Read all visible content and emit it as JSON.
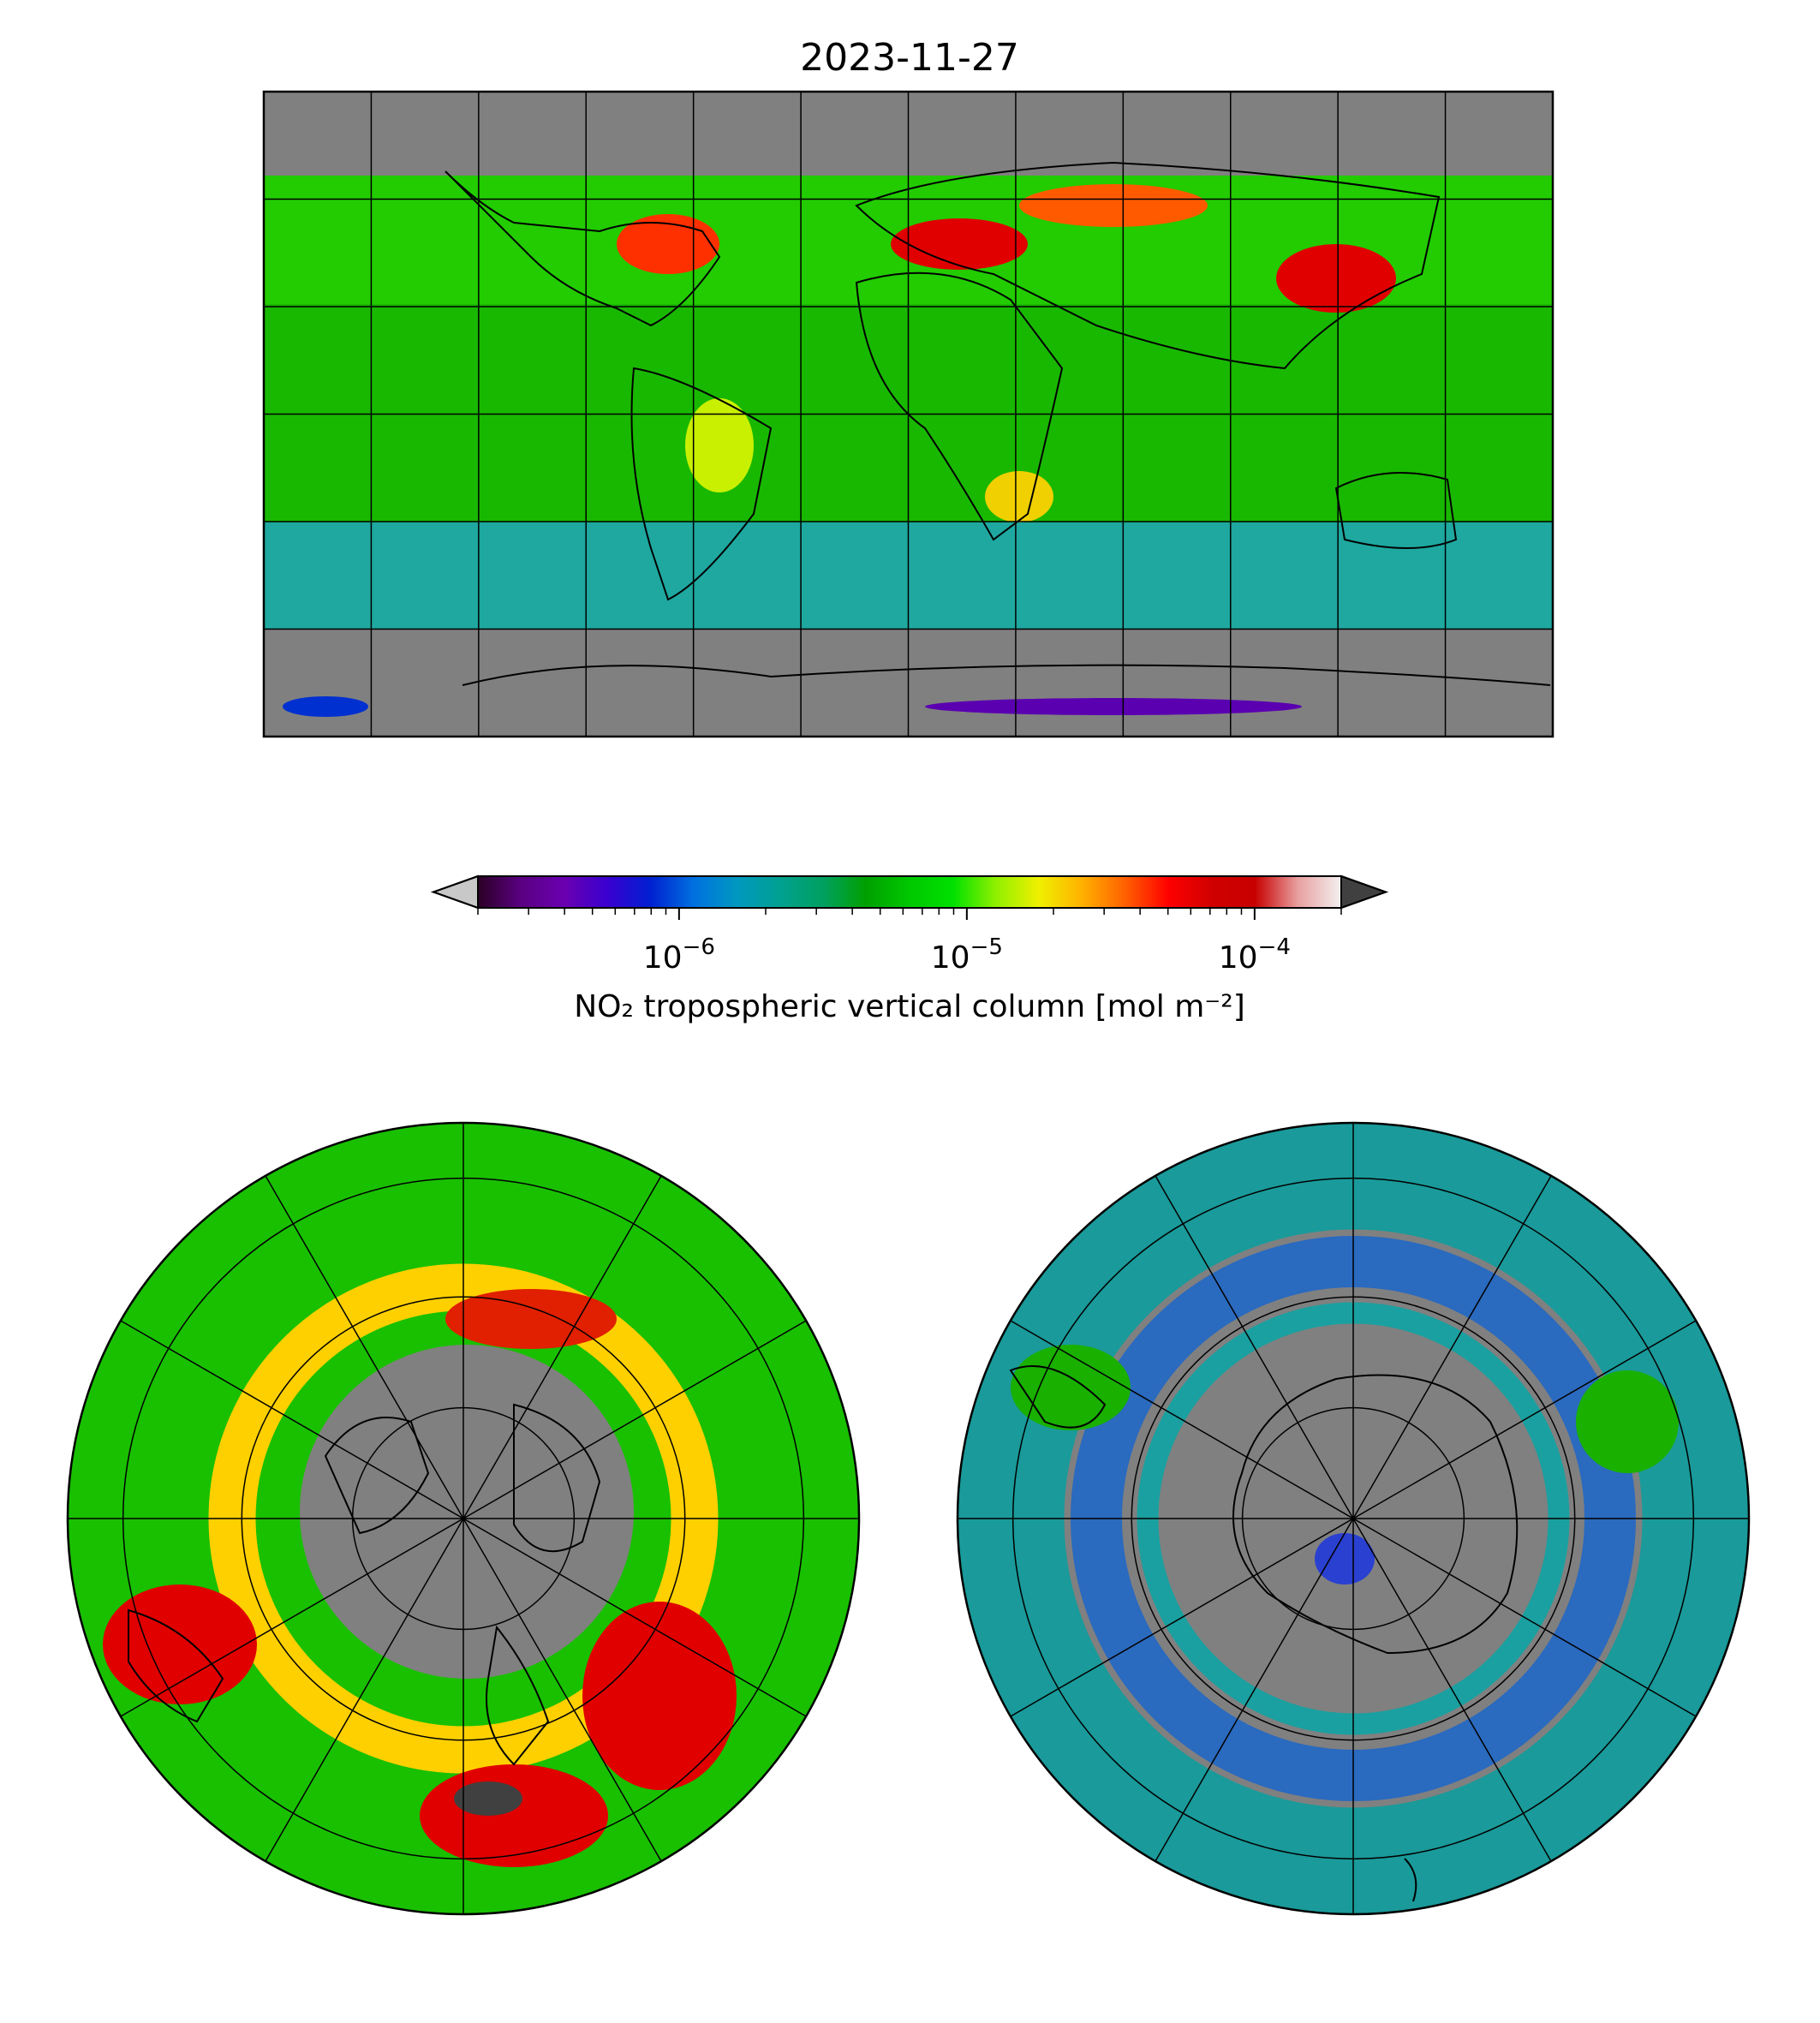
{
  "figure": {
    "title": "2023-11-27",
    "colors": {
      "no_data": "#808080",
      "background": "#ffffff",
      "coastline": "#000000",
      "graticule": "#000000"
    }
  },
  "maps": [
    {
      "id": "global",
      "projection": "plate-carree",
      "graticule": true,
      "coastlines": true
    },
    {
      "id": "north-polar",
      "projection": "north-polar-stereographic",
      "graticule": true,
      "coastlines": true
    },
    {
      "id": "south-polar",
      "projection": "south-polar-stereographic",
      "graticule": true,
      "coastlines": true
    }
  ],
  "colorbar": {
    "label": "NO₂ tropospheric vertical column [mol m⁻²]",
    "scale": "log",
    "range": [
      2e-07,
      0.0002
    ],
    "extend": "both",
    "ticks": [
      {
        "value": 1e-06,
        "base": "10",
        "exp": "−6"
      },
      {
        "value": 1e-05,
        "base": "10",
        "exp": "−5"
      },
      {
        "value": 0.0001,
        "base": "10",
        "exp": "−4"
      }
    ],
    "colormap": [
      "#2b0024",
      "#5a0082",
      "#6a00b0",
      "#3a00d0",
      "#0020d0",
      "#0070e0",
      "#0098c0",
      "#00a090",
      "#00a060",
      "#00a000",
      "#00c800",
      "#00e000",
      "#90f000",
      "#f0f000",
      "#ffb000",
      "#ff6000",
      "#ff0000",
      "#d00000",
      "#c80000",
      "#e8a0a0",
      "#f4f0f0"
    ],
    "under_color": "#c8c8c8",
    "over_color": "#404040"
  }
}
